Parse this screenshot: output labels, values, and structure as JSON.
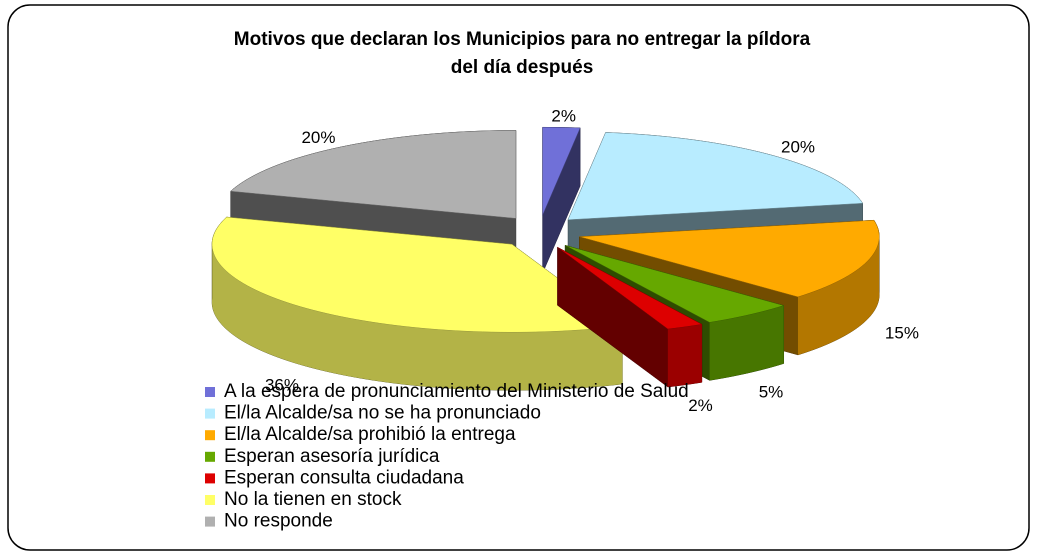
{
  "chart_data": {
    "type": "pie3d",
    "title": "Motivos que declaran los Municipios para no entregar la píldora del día después",
    "categories": [
      "A la espera de pronunciamiento del Ministerio de Salud",
      "El/la Alcalde/sa no se ha pronunciado",
      "El/la Alcalde/sa prohibió la entrega",
      "Esperan asesoría jurídica",
      "Esperan consulta ciudadana",
      "No la tienen en stock",
      "No responde"
    ],
    "values": [
      2,
      20,
      15,
      5,
      2,
      36,
      20
    ],
    "value_labels": [
      "2%",
      "20%",
      "15%",
      "5%",
      "2%",
      "36%",
      "20%"
    ],
    "colors": [
      "#7070d8",
      "#b8ecff",
      "#ffaa00",
      "#66a800",
      "#dd0000",
      "#ffff66",
      "#b0b0b0"
    ],
    "legend": "bottom"
  }
}
